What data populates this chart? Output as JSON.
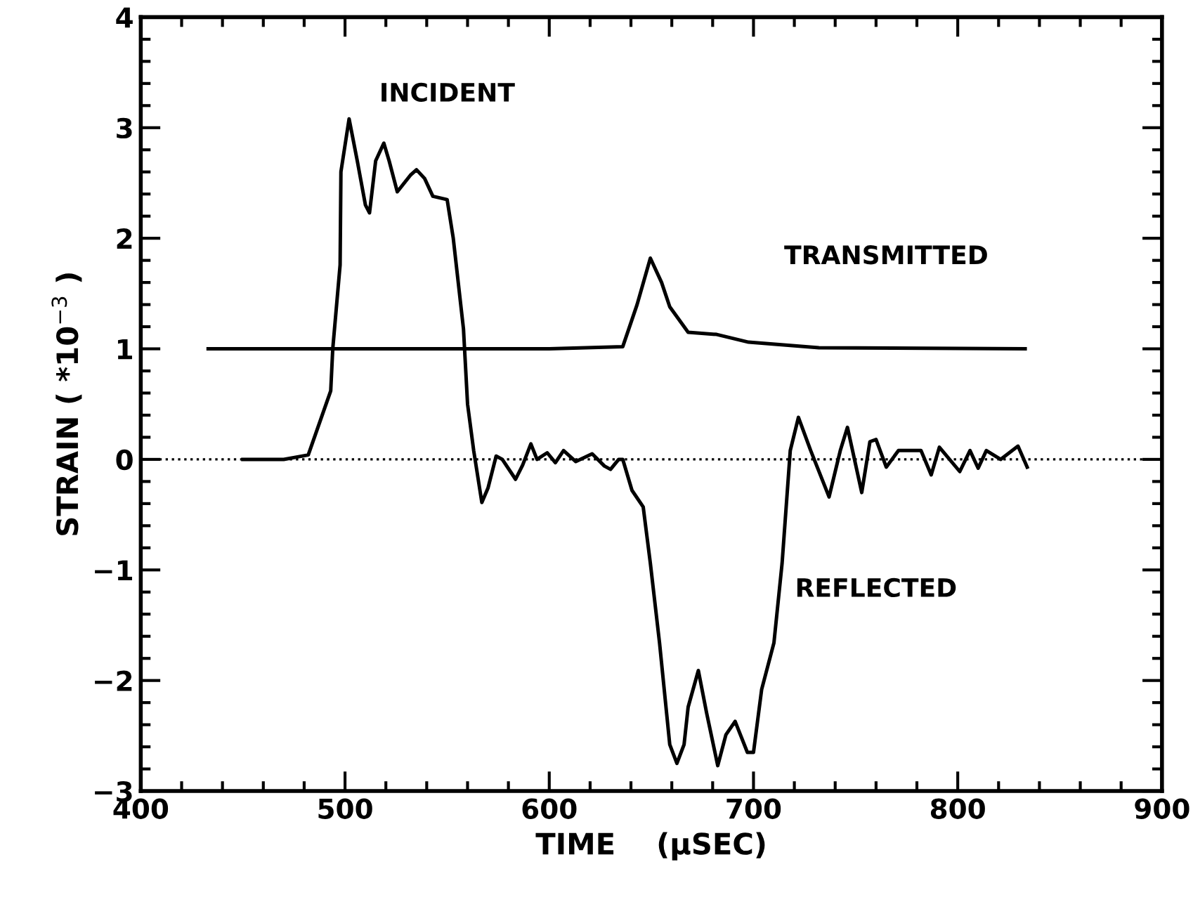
{
  "chart_data": {
    "type": "line",
    "xlabel": "TIME    (μSEC)",
    "ylabel": "STRAIN ( *10$^{−3}$ )",
    "xlim": [
      400,
      900
    ],
    "ylim": [
      -3,
      4
    ],
    "xticks": [
      400,
      500,
      600,
      700,
      800,
      900
    ],
    "yticks": [
      -3,
      -2,
      -1,
      0,
      1,
      2,
      3,
      4
    ],
    "grid": false,
    "legend": false,
    "marker": "none",
    "line_style": "solid",
    "ref_lines": [
      {
        "axis": "y",
        "value": 0,
        "color": "#000000",
        "line_style": "dotted"
      }
    ],
    "annotations": [
      "INCIDENT",
      "TRANSMITTED",
      "REFLECTED"
    ],
    "series": [
      {
        "color": "#000000",
        "x": [
          450,
          470,
          482,
          493,
          494,
          497.6,
          498,
          502,
          506,
          510,
          512,
          515,
          519,
          521.6,
          525.6,
          532,
          535,
          539,
          543,
          550,
          553,
          558,
          560,
          563,
          567,
          570,
          574,
          577,
          583.5,
          587,
          591,
          594,
          599,
          603,
          607,
          613,
          621,
          627,
          630,
          634,
          636,
          640.5,
          646,
          649.5,
          654,
          659,
          662.5,
          666,
          668,
          673,
          677,
          682.5,
          686.5,
          691,
          697,
          700,
          704,
          710,
          714,
          718,
          722,
          728,
          737,
          742.5,
          746,
          753,
          757,
          760,
          765,
          771,
          782,
          787,
          791,
          801,
          806,
          810,
          814,
          821,
          829.5,
          834
        ],
        "values": [
          0,
          0,
          0.04,
          0.62,
          1.0,
          1.76,
          2.6,
          3.08,
          2.7,
          2.3,
          2.23,
          2.7,
          2.86,
          2.7,
          2.42,
          2.57,
          2.62,
          2.54,
          2.38,
          2.35,
          2.0,
          1.18,
          0.5,
          0.08,
          -0.39,
          -0.26,
          0.03,
          0,
          -0.18,
          -0.05,
          0.14,
          0,
          0.06,
          -0.03,
          0.08,
          -0.02,
          0.05,
          -0.06,
          -0.09,
          0,
          0,
          -0.28,
          -0.43,
          -0.94,
          -1.66,
          -2.58,
          -2.75,
          -2.58,
          -2.24,
          -1.91,
          -2.29,
          -2.77,
          -2.49,
          -2.37,
          -2.65,
          -2.65,
          -2.08,
          -1.66,
          -0.94,
          0.08,
          0.38,
          0.08,
          -0.34,
          0.08,
          0.29,
          -0.3,
          0.16,
          0.18,
          -0.07,
          0.08,
          0.08,
          -0.14,
          0.11,
          -0.11,
          0.08,
          -0.08,
          0.08,
          0,
          0.12,
          -0.07
        ]
      },
      {
        "color": "#000000",
        "x": [
          433,
          500,
          600,
          636,
          643,
          649.5,
          655,
          659,
          668,
          682,
          697.6,
          732,
          833
        ],
        "values": [
          1.0,
          1.0,
          1.0,
          1.02,
          1.4,
          1.82,
          1.6,
          1.38,
          1.15,
          1.13,
          1.06,
          1.01,
          1.0
        ]
      }
    ]
  }
}
